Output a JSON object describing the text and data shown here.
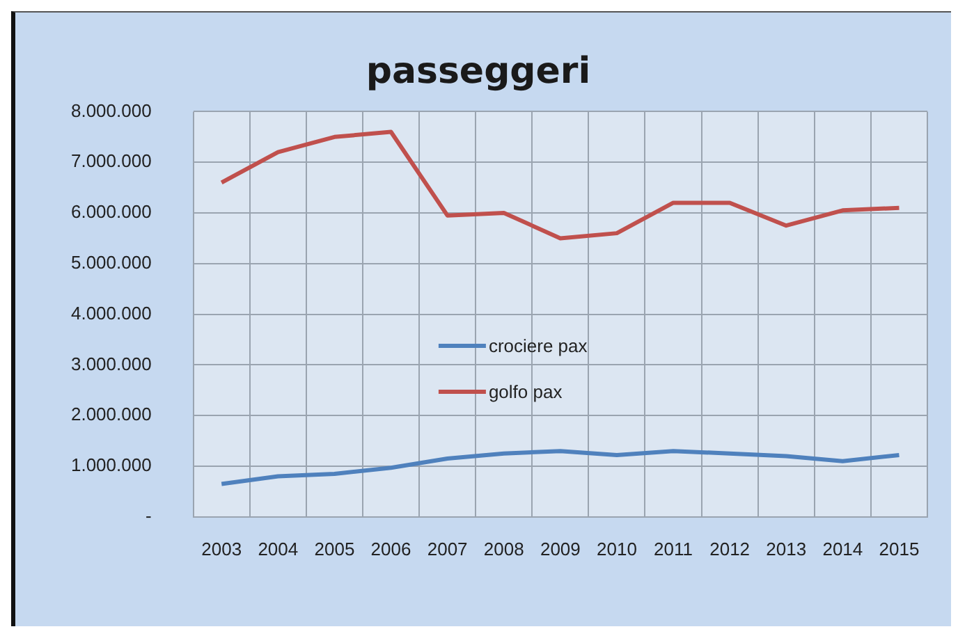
{
  "chart_data": {
    "type": "line",
    "title": "passeggeri",
    "categories": [
      "2003",
      "2004",
      "2005",
      "2006",
      "2007",
      "2008",
      "2009",
      "2010",
      "2011",
      "2012",
      "2013",
      "2014",
      "2015"
    ],
    "series": [
      {
        "name": "crociere pax",
        "color": "#4f81bd",
        "values": [
          650000,
          800000,
          850000,
          970000,
          1150000,
          1250000,
          1300000,
          1220000,
          1300000,
          1250000,
          1200000,
          1100000,
          1220000
        ]
      },
      {
        "name": "golfo pax",
        "color": "#c0504d",
        "values": [
          6600000,
          7200000,
          7500000,
          7600000,
          5950000,
          6000000,
          5500000,
          5600000,
          6200000,
          6200000,
          5750000,
          6050000,
          6100000
        ]
      }
    ],
    "ylim": [
      0,
      8000000
    ],
    "yticks": [
      {
        "value": 0,
        "label": "-"
      },
      {
        "value": 1000000,
        "label": "1.000.000"
      },
      {
        "value": 2000000,
        "label": "2.000.000"
      },
      {
        "value": 3000000,
        "label": "3.000.000"
      },
      {
        "value": 4000000,
        "label": "4.000.000"
      },
      {
        "value": 5000000,
        "label": "5.000.000"
      },
      {
        "value": 6000000,
        "label": "6.000.000"
      },
      {
        "value": 7000000,
        "label": "7.000.000"
      },
      {
        "value": 8000000,
        "label": "8.000.000"
      }
    ],
    "grid": true,
    "legend": "center",
    "marker": "none",
    "line_style": "solid"
  }
}
